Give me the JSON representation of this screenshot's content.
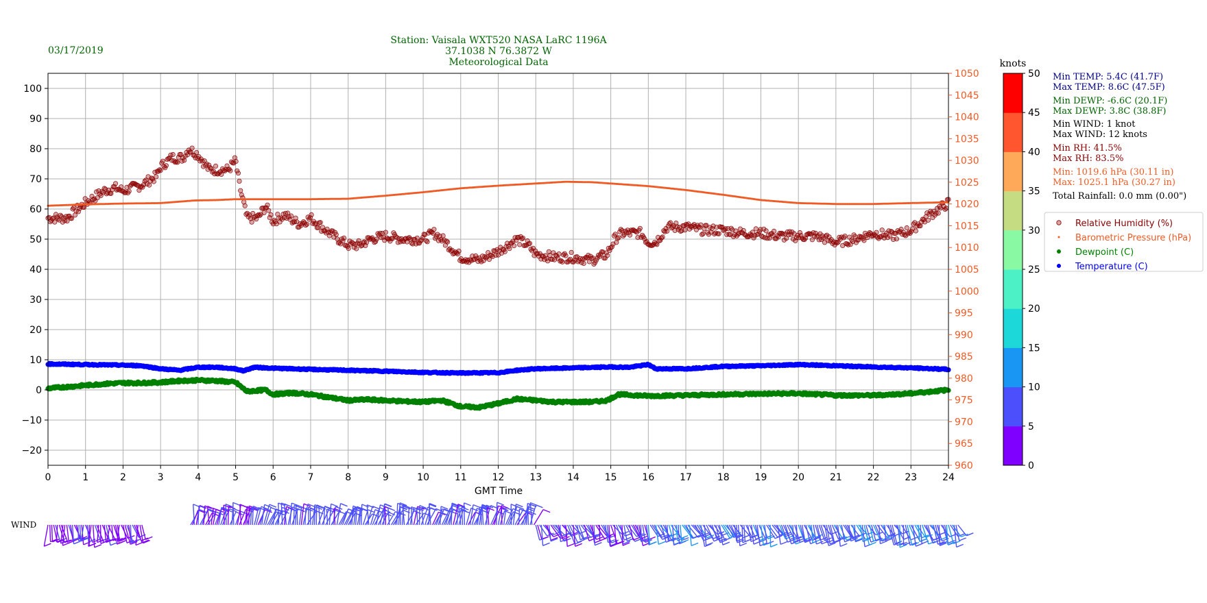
{
  "header": {
    "date": "03/17/2019",
    "title_lines": [
      "Station:  Vaisala WXT520  NASA LaRC 1196A",
      "37.1038 N 76.3872 W",
      "Meteorological Data"
    ]
  },
  "stats": [
    {
      "text": "Min TEMP: 5.4C (41.7F)",
      "color": "#00008b"
    },
    {
      "text": "Max TEMP: 8.6C (47.5F)",
      "color": "#00008b"
    },
    {
      "text": "Min DEWP: -6.6C (20.1F)",
      "color": "#006400"
    },
    {
      "text": "Max DEWP: 3.8C (38.8F)",
      "color": "#006400"
    },
    {
      "text": "Min WIND: 1 knot",
      "color": "#000000"
    },
    {
      "text": "Max WIND: 12 knots",
      "color": "#000000"
    },
    {
      "text": "Min RH: 41.5%",
      "color": "#8b0000"
    },
    {
      "text": "Max RH: 83.5%",
      "color": "#8b0000"
    },
    {
      "text": "Min: 1019.6 hPa (30.11 in)",
      "color": "#f05a24"
    },
    {
      "text": "Max: 1025.1 hPa (30.27 in)",
      "color": "#f05a24"
    },
    {
      "text": "Total Rainfall: 0.0 mm (0.00\")",
      "color": "#000000"
    }
  ],
  "wind_label": "WIND",
  "colorbar": {
    "title": "knots",
    "ticks": [
      "0",
      "5",
      "10",
      "15",
      "20",
      "25",
      "30",
      "35",
      "40",
      "45",
      "50"
    ],
    "colors": [
      "#7f00ff",
      "#4c50fc",
      "#1996f3",
      "#1cd8d9",
      "#4cf2c6",
      "#8af9a4",
      "#c6dc83",
      "#fea85a",
      "#ff5630",
      "#ff0000"
    ]
  },
  "chart_data": {
    "type": "scatter",
    "xlabel": "GMT Time",
    "x_ticks": [
      "0",
      "1",
      "2",
      "3",
      "4",
      "5",
      "6",
      "7",
      "8",
      "9",
      "10",
      "11",
      "12",
      "13",
      "14",
      "15",
      "16",
      "17",
      "18",
      "19",
      "20",
      "21",
      "22",
      "23",
      "24"
    ],
    "xlim": [
      0,
      24
    ],
    "y_left": {
      "ylim": [
        -25,
        105
      ],
      "ticks": [
        "−20",
        "−10",
        "0",
        "10",
        "20",
        "30",
        "40",
        "50",
        "60",
        "70",
        "80",
        "90",
        "100"
      ]
    },
    "y_right": {
      "ylim": [
        960,
        1050
      ],
      "ticks": [
        "960",
        "965",
        "970",
        "975",
        "980",
        "985",
        "990",
        "995",
        "1000",
        "1005",
        "1010",
        "1015",
        "1020",
        "1025",
        "1030",
        "1035",
        "1040",
        "1045",
        "1050"
      ],
      "color": "#f05a24"
    },
    "series": [
      {
        "name": "Relative Humidity (%)",
        "color": "#8b0000",
        "x": [
          0,
          0.5,
          1,
          1.5,
          1.8,
          2,
          2.5,
          2.9,
          3,
          3.3,
          3.6,
          3.75,
          4,
          4.3,
          4.5,
          4.8,
          5,
          5.1,
          5.3,
          5.6,
          5.8,
          6,
          6.3,
          6.7,
          7,
          7.5,
          8,
          8.3,
          8.6,
          9,
          9.5,
          10,
          10.3,
          10.6,
          11,
          11.5,
          12,
          12.5,
          12.8,
          13,
          13.5,
          14,
          14.5,
          14.9,
          15.1,
          15.3,
          15.8,
          16,
          16.2,
          16.5,
          17,
          17.5,
          18,
          18.5,
          19,
          19.5,
          20,
          20.5,
          21,
          21.5,
          22,
          22.5,
          23,
          23.5,
          24
        ],
        "y": [
          57,
          57,
          62,
          66,
          67,
          66,
          68,
          71,
          74,
          77,
          77,
          80,
          78,
          73,
          73,
          73,
          76,
          68,
          57,
          57,
          61,
          56,
          58,
          55,
          57,
          52,
          48,
          48,
          50,
          51,
          50,
          50,
          52,
          49,
          44,
          43,
          46,
          50,
          48,
          45,
          44,
          44,
          43,
          45,
          50,
          52,
          52,
          49,
          49,
          54,
          54,
          53,
          53,
          52,
          52,
          51,
          51,
          51,
          49,
          50,
          52,
          51,
          53,
          58,
          62
        ]
      },
      {
        "name": "Barometric Pressure (hPa)",
        "color": "#f05a24",
        "x": [
          0,
          1,
          2,
          3,
          3.9,
          4.5,
          5,
          6,
          7,
          8,
          9,
          10,
          11,
          12,
          13,
          13.8,
          14.5,
          15,
          16,
          17,
          18,
          19,
          20,
          21,
          22,
          23,
          24
        ],
        "y": [
          1019.6,
          1019.9,
          1020.1,
          1020.2,
          1020.8,
          1020.9,
          1021.1,
          1021.1,
          1021.1,
          1021.2,
          1021.9,
          1022.7,
          1023.6,
          1024.2,
          1024.7,
          1025.1,
          1025.0,
          1024.7,
          1024.1,
          1023.2,
          1022.1,
          1020.9,
          1020.2,
          1020.0,
          1020.0,
          1020.2,
          1020.4
        ]
      },
      {
        "name": "Dewpoint (C)",
        "color": "#008000",
        "x": [
          0,
          0.5,
          1,
          1.5,
          2,
          2.5,
          3,
          3.5,
          4,
          4.5,
          5,
          5.3,
          5.8,
          6,
          6.5,
          7,
          7.5,
          8,
          8.5,
          9,
          9.5,
          10,
          10.5,
          11,
          11.5,
          12,
          12.5,
          13,
          13.5,
          14,
          14.5,
          14.9,
          15.2,
          16,
          17,
          18,
          19,
          20,
          21,
          22,
          23,
          24
        ],
        "y": [
          0.5,
          1,
          1.5,
          2,
          2.3,
          2.3,
          2.5,
          3,
          3.2,
          3,
          2.5,
          -0.5,
          0,
          -1.5,
          -1,
          -1.5,
          -2.5,
          -3.5,
          -3.2,
          -3.5,
          -3.8,
          -4,
          -3.5,
          -5.5,
          -5.8,
          -4.5,
          -3,
          -3.5,
          -4,
          -4,
          -4,
          -3.5,
          -1.5,
          -2,
          -1.8,
          -1.5,
          -1.3,
          -1.2,
          -1.8,
          -1.8,
          -1.2,
          0
        ]
      },
      {
        "name": "Temperature (C)",
        "color": "#0000ff",
        "x": [
          0,
          1,
          2,
          2.5,
          3,
          3.5,
          4,
          4.5,
          5,
          5.2,
          5.5,
          6,
          7,
          8,
          9,
          10,
          11,
          12,
          12.5,
          13,
          14,
          15,
          15.5,
          16,
          16.2,
          17,
          18,
          19,
          20,
          21,
          22,
          23,
          24
        ],
        "y": [
          8.6,
          8.4,
          8.2,
          8,
          7,
          6.5,
          7.5,
          7.5,
          7,
          6.3,
          7.5,
          7.2,
          6.8,
          6.5,
          6.2,
          5.8,
          5.6,
          5.7,
          6.5,
          7,
          7.3,
          7.6,
          7.5,
          8.4,
          7,
          7,
          7.8,
          8,
          8.4,
          8,
          7.6,
          7.3,
          6.8
        ]
      }
    ],
    "legend": {
      "placement": "right",
      "entries": [
        "Relative Humidity (%)",
        "Barometric Pressure (hPa)",
        "Dewpoint (C)",
        "Temperature (C)"
      ]
    },
    "grid": true
  },
  "wind_data": {
    "segments": [
      {
        "from": 0.0,
        "to": 2.5,
        "speed": 4
      },
      {
        "from": 3.8,
        "to": 5.3,
        "speed": 5
      },
      {
        "from": 5.3,
        "to": 13.0,
        "speed": 7
      },
      {
        "from": 13.0,
        "to": 16.0,
        "speed": 6
      },
      {
        "from": 16.0,
        "to": 24.3,
        "speed": 9
      }
    ]
  }
}
